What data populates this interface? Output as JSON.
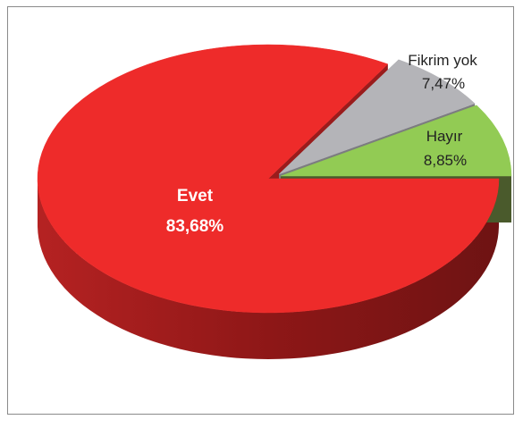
{
  "chart_data": {
    "type": "pie",
    "title": "",
    "categories": [
      "Evet",
      "Fikrim yok",
      "Hayır"
    ],
    "values": [
      83.68,
      7.47,
      8.85
    ],
    "value_labels": [
      "83,68%",
      "7,47%",
      "8,85%"
    ],
    "colors": [
      "#ee2b2a",
      "#b4b4b8",
      "#92cb54"
    ],
    "side_colors": [
      "#9a1c1c",
      "#7c7c80",
      "#4a5a2c"
    ],
    "label_colors": [
      "#ffffff",
      "#222222",
      "#222222"
    ],
    "legend": "none",
    "style": "3d-exploded"
  }
}
